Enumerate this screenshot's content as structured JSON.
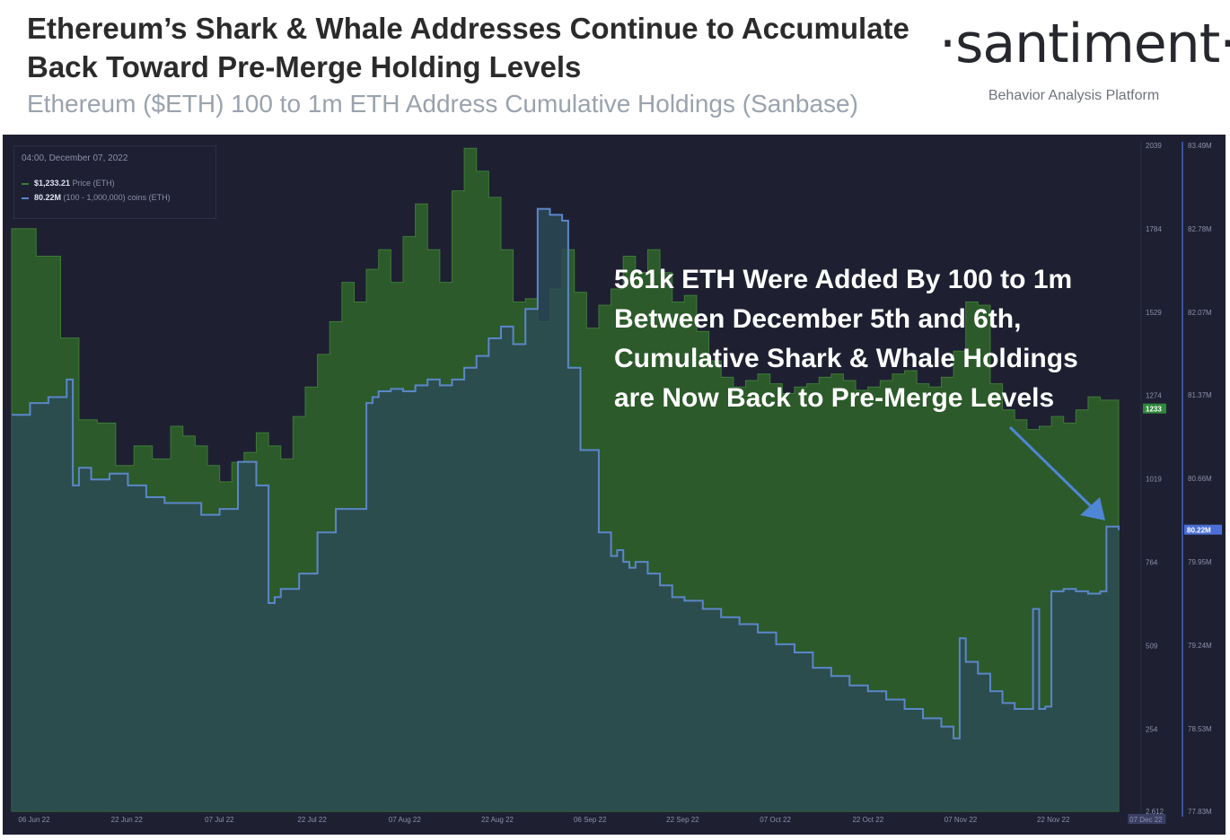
{
  "header": {
    "title": "Ethereum’s Shark & Whale Addresses Continue to Accumulate Back Toward Pre-Merge Holding Levels",
    "subtitle": "Ethereum ($ETH) 100 to 1m ETH Address Cumulative Holdings (Sanbase)"
  },
  "brand": {
    "logo_text": "·santiment·",
    "tagline": "Behavior Analysis Platform",
    "watermark": "santiment"
  },
  "tooltip": {
    "date": "04:00, December 07, 2022",
    "price_value": "$1,233.21",
    "price_label": "Price (ETH)",
    "holdings_value": "80.22M",
    "holdings_label": "(100 - 1,000,000) coins (ETH)"
  },
  "annotation": {
    "text": "561k ETH Were Added By 100 to 1m\nBetween December 5th and 6th,\nCumulative Shark & Whale Holdings\nare Now Back to Pre-Merge Levels"
  },
  "colors": {
    "background": "#1e2032",
    "price_fill": "#2c5a2a",
    "price_line": "#3e7a38",
    "holdings_line": "#5b86c9",
    "holdings_fill": "#2c4a56",
    "price_badge": "#2f8a3a",
    "holdings_badge": "#4a6fd6",
    "arrow": "#4f86d6"
  },
  "chart_data": {
    "type": "area",
    "x_ticks": [
      "06 Jun 22",
      "22 Jun 22",
      "07 Jul 22",
      "22 Jul 22",
      "07 Aug 22",
      "22 Aug 22",
      "06 Sep 22",
      "22 Sep 22",
      "07 Oct 22",
      "22 Oct 22",
      "07 Nov 22",
      "22 Nov 22",
      "07 Dec 22"
    ],
    "price_axis": {
      "ticks": [
        "2039",
        "1784",
        "1529",
        "1274",
        "1019",
        "764",
        "509",
        "254",
        "2.612"
      ],
      "ylim": [
        2.612,
        2039
      ],
      "current_badge": "1233"
    },
    "holdings_axis": {
      "ticks": [
        "83.49M",
        "82.78M",
        "82.07M",
        "81.37M",
        "80.66M",
        "79.95M",
        "79.24M",
        "78.53M",
        "77.83M"
      ],
      "ylim": [
        77.83,
        83.49
      ],
      "unit": "M",
      "current_badge": "80.22M"
    },
    "series": [
      {
        "name": "Price (ETH)",
        "x": [
          0,
          4,
          8,
          11,
          14,
          17,
          20,
          23,
          26,
          28,
          30,
          32,
          34,
          36,
          38,
          40,
          42,
          44,
          46,
          48,
          50,
          52,
          54,
          56,
          58,
          60,
          62,
          64,
          66,
          68,
          70,
          72,
          74,
          76,
          78,
          80,
          82,
          84,
          86,
          88,
          90,
          92,
          94,
          96,
          98,
          100,
          102,
          104,
          106,
          108,
          110,
          112,
          114,
          116,
          118,
          120,
          122,
          124,
          126,
          128,
          130,
          132,
          134,
          136,
          138,
          140,
          142,
          144,
          146,
          148,
          150,
          152,
          154,
          156,
          158,
          160,
          162,
          164,
          166,
          168,
          170,
          172,
          174,
          176,
          178,
          181
        ],
        "values": [
          1784,
          1700,
          1450,
          1200,
          1190,
          1060,
          1120,
          1080,
          1180,
          1150,
          1120,
          1060,
          1010,
          1070,
          1100,
          1160,
          1120,
          1080,
          1210,
          1300,
          1400,
          1500,
          1620,
          1560,
          1660,
          1720,
          1620,
          1760,
          1860,
          1720,
          1620,
          1900,
          2030,
          1960,
          1880,
          1720,
          1560,
          1570,
          1500,
          1600,
          1720,
          1590,
          1480,
          1550,
          1600,
          1700,
          1650,
          1720,
          1650,
          1560,
          1580,
          1470,
          1380,
          1330,
          1300,
          1320,
          1340,
          1310,
          1280,
          1300,
          1310,
          1330,
          1340,
          1320,
          1290,
          1300,
          1320,
          1340,
          1350,
          1310,
          1300,
          1330,
          1410,
          1560,
          1550,
          1310,
          1230,
          1200,
          1170,
          1180,
          1210,
          1190,
          1230,
          1270,
          1260,
          1233
        ]
      },
      {
        "name": "(100 - 1,000,000) coins (ETH)",
        "x": [
          0,
          3,
          6,
          9,
          10,
          11,
          13,
          16,
          19,
          22,
          25,
          28,
          31,
          34,
          37,
          40,
          42,
          43,
          44,
          47,
          50,
          53,
          56,
          58,
          59,
          60,
          62,
          64,
          66,
          68,
          70,
          72,
          74,
          76,
          78,
          80,
          82,
          84,
          86,
          88,
          90,
          91,
          93,
          96,
          98,
          99,
          100,
          101,
          102,
          104,
          106,
          108,
          110,
          113,
          116,
          119,
          122,
          125,
          128,
          131,
          134,
          137,
          140,
          143,
          146,
          149,
          152,
          154,
          155,
          156,
          158,
          160,
          162,
          164,
          166,
          167,
          168,
          169,
          170,
          172,
          174,
          176,
          178,
          179,
          181
        ],
        "values": [
          81.2,
          81.3,
          81.35,
          81.5,
          80.6,
          80.75,
          80.65,
          80.7,
          80.6,
          80.5,
          80.45,
          80.45,
          80.35,
          80.4,
          80.8,
          80.6,
          79.6,
          79.65,
          79.72,
          79.85,
          80.2,
          80.4,
          80.4,
          81.3,
          81.35,
          81.4,
          81.42,
          81.4,
          81.45,
          81.5,
          81.45,
          81.5,
          81.6,
          81.7,
          81.85,
          81.95,
          81.8,
          82.1,
          82.95,
          82.9,
          82.85,
          81.6,
          80.9,
          80.2,
          80.0,
          80.05,
          79.95,
          79.9,
          79.95,
          79.85,
          79.75,
          79.65,
          79.62,
          79.55,
          79.48,
          79.42,
          79.35,
          79.25,
          79.18,
          79.05,
          78.98,
          78.9,
          78.85,
          78.78,
          78.7,
          78.62,
          78.55,
          78.45,
          79.3,
          79.1,
          79.0,
          78.85,
          78.75,
          78.7,
          78.7,
          79.55,
          78.7,
          78.72,
          79.7,
          79.72,
          79.7,
          79.68,
          79.7,
          80.25,
          80.22
        ]
      }
    ],
    "annotation_target": {
      "series": "(100 - 1,000,000) coins (ETH)",
      "date": "07 Dec 22"
    }
  }
}
